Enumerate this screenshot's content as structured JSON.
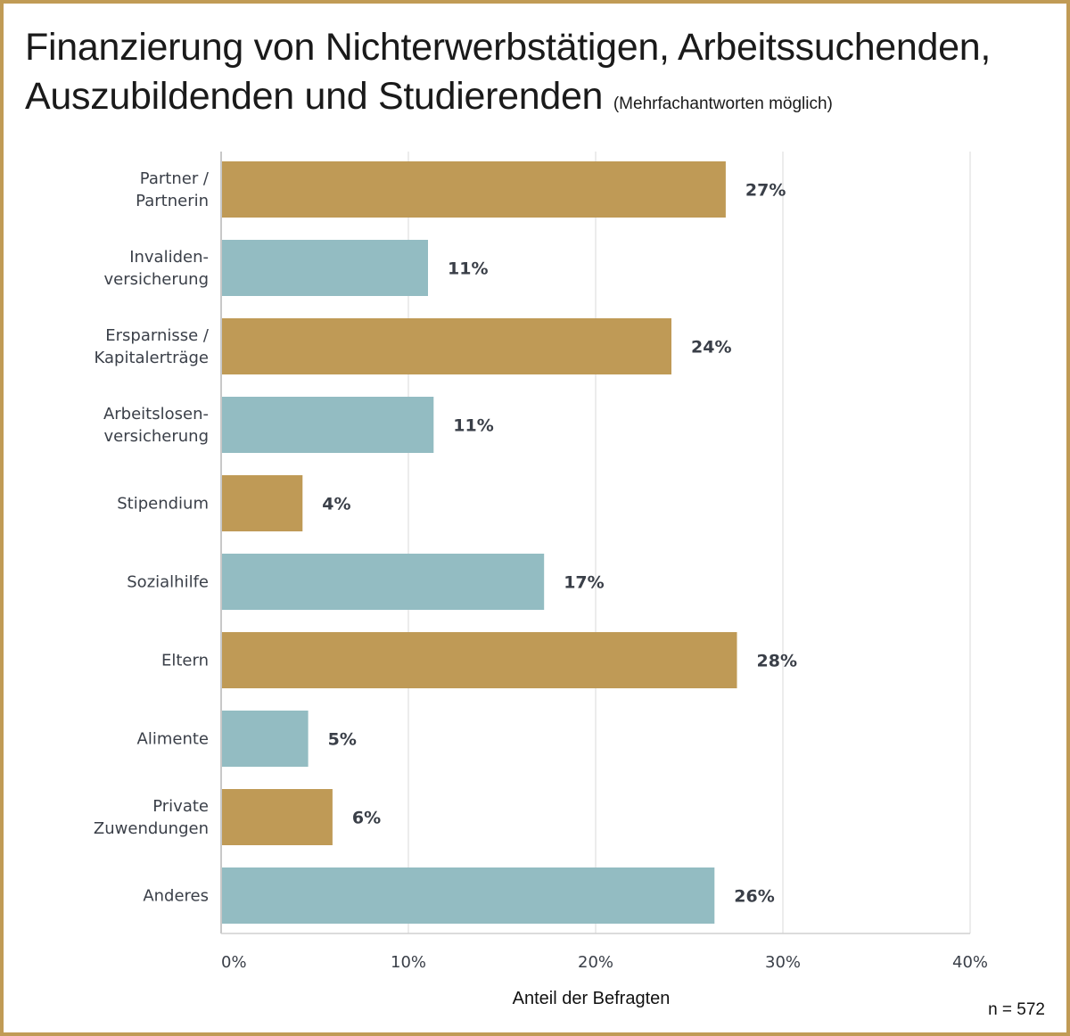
{
  "title_line1": "Finanzierung von Nichterwerbstätigen, Arbeitssuchenden,",
  "title_line2": "Auszubildenden und Studierenden",
  "subtitle": "(Mehrfachantworten möglich)",
  "sample_size": "n = 572",
  "colors": {
    "gold": "#BF9A56",
    "teal": "#93BCC2",
    "border": "#C09B55"
  },
  "chart_data": {
    "type": "bar",
    "orientation": "horizontal",
    "title": "Finanzierung von Nichterwerbstätigen, Arbeitssuchenden, Auszubildenden und Studierenden",
    "xlabel": "Anteil der Befragten",
    "ylabel": "",
    "xlim": [
      0,
      40
    ],
    "xticks": [
      0,
      10,
      20,
      30,
      40
    ],
    "xtick_labels": [
      "0%",
      "10%",
      "20%",
      "30%",
      "40%"
    ],
    "grid": true,
    "categories": [
      [
        "Partner /",
        "Partnerin"
      ],
      [
        "Invaliden-",
        "versicherung"
      ],
      [
        "Ersparnisse /",
        "Kapitalerträge"
      ],
      [
        "Arbeitslosen-",
        "versicherung"
      ],
      [
        "Stipendium"
      ],
      [
        "Sozialhilfe"
      ],
      [
        "Eltern"
      ],
      [
        "Alimente"
      ],
      [
        "Private",
        "Zuwendungen"
      ],
      [
        "Anderes"
      ]
    ],
    "values": [
      26.9,
      11.0,
      24.0,
      11.3,
      4.3,
      17.2,
      27.5,
      4.6,
      5.9,
      26.3
    ],
    "value_labels": [
      "27%",
      "11%",
      "24%",
      "11%",
      "4%",
      "17%",
      "28%",
      "5%",
      "6%",
      "26%"
    ],
    "bar_colors": [
      "#BF9A56",
      "#93BCC2",
      "#BF9A56",
      "#93BCC2",
      "#BF9A56",
      "#93BCC2",
      "#BF9A56",
      "#93BCC2",
      "#BF9A56",
      "#93BCC2"
    ]
  }
}
